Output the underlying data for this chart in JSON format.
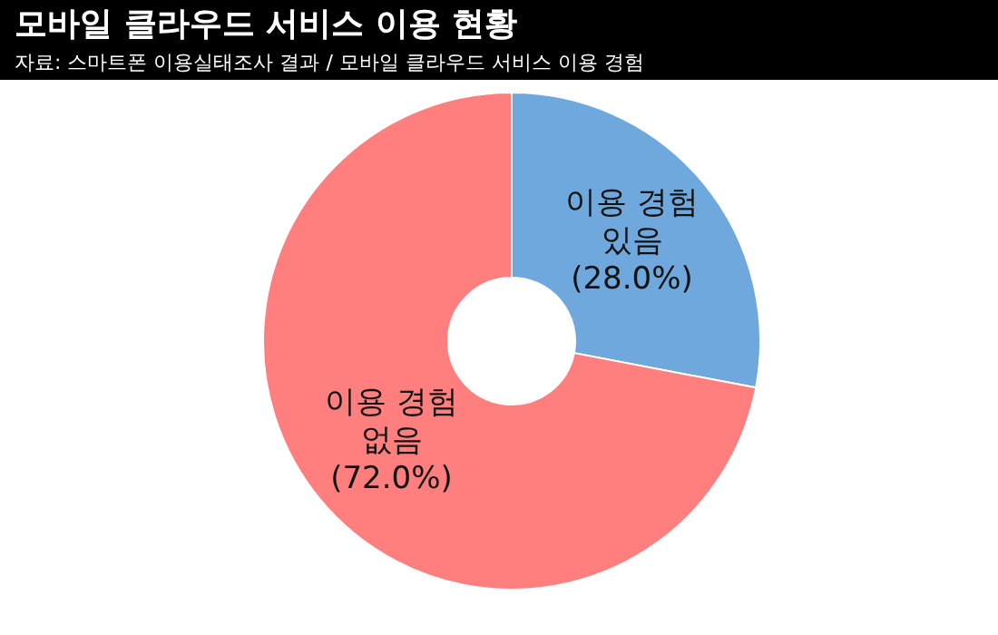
{
  "chart_data": {
    "type": "donut",
    "title": "모바일 클라우드 서비스 이용 현황",
    "subtitle": "자료: 스마트폰 이용실태조사 결과 / 모바일 클라우드 서비스 이용 경험",
    "categories": [
      "이용 경험 있음",
      "이용 경험 없음"
    ],
    "values": [
      28,
      72
    ],
    "colors": [
      "#6fa8dc",
      "#ff7f7f"
    ],
    "value_labels": [
      "(28.0%)",
      "(72.0%)"
    ]
  }
}
